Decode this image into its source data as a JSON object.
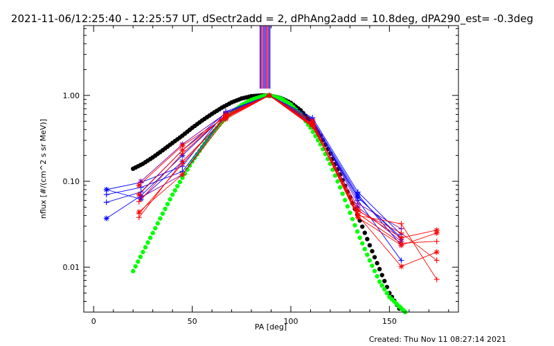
{
  "title": "2021-11-06/12:25:40 - 12:25:57 UT, dSectr2add = 2, dPhAng2add = 10.8deg, dPA290_est= -0.3deg",
  "footer": "Created: Thu Nov 11 08:27:14 2021",
  "chart_data": {
    "type": "scatter",
    "title": "2021-11-06/12:25:40 - 12:25:57 UT, dSectr2add = 2, dPhAng2add = 10.8deg, dPA290_est= -0.3deg",
    "xlabel": "PA [deg]",
    "ylabel": "nflux [#/(cm^2 s sr MeV)]",
    "xlim": [
      -5,
      185
    ],
    "ylim": [
      0.003,
      6.5
    ],
    "yscale": "log",
    "grid": false,
    "x_ticks": [
      0,
      50,
      100,
      150
    ],
    "x_tick_labels": [
      "0",
      "50",
      "100",
      "150"
    ],
    "y_ticks": [
      0.01,
      0.1,
      1.0
    ],
    "y_tick_labels": [
      "0.01",
      "0.10",
      "1.00"
    ],
    "colors": {
      "blue": "#0000ff",
      "red": "#ff0000",
      "purple": "#8000a0",
      "black": "#000000",
      "green": "#00ff00"
    },
    "vertical_lines": {
      "x": [
        84.5,
        85.3,
        86.1,
        86.9,
        87.7,
        88.5,
        89.3
      ],
      "colors": [
        "#0000ff",
        "#ff0000",
        "#8000a0",
        "#0000ff",
        "#ff0000",
        "#8000a0",
        "#0000ff"
      ],
      "y_from": 1.2,
      "y_to": 6.5
    },
    "series": [
      {
        "color": "#000000",
        "marker": "dot",
        "x": [
          20,
          25,
          30,
          35,
          40,
          45,
          50,
          55,
          60,
          65,
          70,
          75,
          80,
          85,
          88,
          90,
          95,
          100,
          105,
          110,
          115,
          120,
          125,
          130,
          135,
          140,
          145,
          150,
          155
        ],
        "y": [
          0.14,
          0.16,
          0.19,
          0.23,
          0.28,
          0.34,
          0.42,
          0.51,
          0.61,
          0.72,
          0.83,
          0.92,
          0.98,
          1.0,
          1.0,
          0.99,
          0.93,
          0.82,
          0.67,
          0.5,
          0.34,
          0.21,
          0.12,
          0.065,
          0.035,
          0.018,
          0.0095,
          0.005,
          0.0033
        ]
      },
      {
        "color": "#00ff00",
        "marker": "dot",
        "x": [
          20,
          25,
          30,
          35,
          40,
          45,
          50,
          55,
          60,
          65,
          70,
          75,
          80,
          85,
          88,
          90,
          95,
          100,
          105,
          110,
          115,
          120,
          125,
          130,
          135,
          140,
          145,
          150,
          155,
          158
        ],
        "y": [
          0.009,
          0.015,
          0.025,
          0.042,
          0.07,
          0.11,
          0.17,
          0.25,
          0.36,
          0.49,
          0.63,
          0.77,
          0.89,
          0.97,
          1.0,
          0.99,
          0.92,
          0.78,
          0.6,
          0.42,
          0.27,
          0.16,
          0.085,
          0.043,
          0.022,
          0.012,
          0.0068,
          0.0045,
          0.0035,
          0.003
        ]
      },
      {
        "color": "#0000ff",
        "marker": "plus",
        "x": [
          6.5,
          24,
          45,
          67,
          89,
          111,
          134,
          156
        ],
        "y": [
          0.08,
          0.097,
          0.15,
          0.65,
          1.0,
          0.55,
          0.075,
          0.024
        ]
      },
      {
        "color": "#0000ff",
        "marker": "plus",
        "x": [
          6.5,
          24,
          45,
          67,
          89,
          111,
          134,
          156
        ],
        "y": [
          0.07,
          0.085,
          0.13,
          0.6,
          1.0,
          0.5,
          0.066,
          0.021
        ]
      },
      {
        "color": "#0000ff",
        "marker": "star",
        "x": [
          6.5,
          24,
          45,
          67,
          89,
          111,
          134,
          156
        ],
        "y": [
          0.037,
          0.068,
          0.2,
          0.6,
          1.0,
          0.52,
          0.07,
          0.018
        ]
      },
      {
        "color": "#0000ff",
        "marker": "plus",
        "x": [
          6.5,
          24,
          45,
          67,
          89,
          111,
          134,
          156
        ],
        "y": [
          0.057,
          0.075,
          0.23,
          0.63,
          1.0,
          0.5,
          0.06,
          0.012
        ]
      },
      {
        "color": "#0000ff",
        "marker": "star",
        "x": [
          6.5,
          24,
          45,
          67,
          89,
          111,
          134,
          156
        ],
        "y": [
          0.08,
          0.062,
          0.17,
          0.55,
          1.0,
          0.48,
          0.065,
          0.022
        ]
      },
      {
        "color": "#8000a0",
        "marker": "plus",
        "x": [
          24,
          45,
          67,
          89,
          111,
          134,
          156
        ],
        "y": [
          0.065,
          0.12,
          0.58,
          1.0,
          0.52,
          0.055,
          0.028
        ]
      },
      {
        "color": "#8000a0",
        "marker": "star",
        "x": [
          24,
          45,
          67,
          89,
          111,
          134,
          156
        ],
        "y": [
          0.1,
          0.27,
          0.62,
          1.0,
          0.46,
          0.05,
          0.02
        ]
      },
      {
        "color": "#ff0000",
        "marker": "plus",
        "x": [
          23,
          45,
          67,
          89,
          111,
          134,
          156,
          174
        ],
        "y": [
          0.038,
          0.17,
          0.55,
          1.0,
          0.45,
          0.04,
          0.032,
          0.0072
        ]
      },
      {
        "color": "#ff0000",
        "marker": "star",
        "x": [
          23,
          45,
          67,
          89,
          111,
          134,
          156,
          174
        ],
        "y": [
          0.044,
          0.12,
          0.53,
          1.0,
          0.46,
          0.038,
          0.018,
          0.025
        ]
      },
      {
        "color": "#ff0000",
        "marker": "plus",
        "x": [
          23,
          45,
          67,
          89,
          111,
          134,
          156,
          174
        ],
        "y": [
          0.058,
          0.21,
          0.6,
          1.0,
          0.43,
          0.045,
          0.025,
          0.012
        ]
      },
      {
        "color": "#ff0000",
        "marker": "star",
        "x": [
          23,
          45,
          67,
          89,
          111,
          134,
          156,
          174
        ],
        "y": [
          0.09,
          0.26,
          0.56,
          1.0,
          0.5,
          0.04,
          0.0102,
          0.015
        ]
      },
      {
        "color": "#ff0000",
        "marker": "plus",
        "x": [
          23,
          45,
          67,
          89,
          111,
          134,
          156,
          174
        ],
        "y": [
          0.042,
          0.16,
          0.57,
          1.0,
          0.44,
          0.042,
          0.019,
          0.02
        ]
      },
      {
        "color": "#ff0000",
        "marker": "star",
        "x": [
          23,
          45,
          67,
          89,
          111,
          134,
          156,
          174
        ],
        "y": [
          0.07,
          0.23,
          0.58,
          1.0,
          0.47,
          0.046,
          0.022,
          0.027
        ]
      }
    ]
  }
}
